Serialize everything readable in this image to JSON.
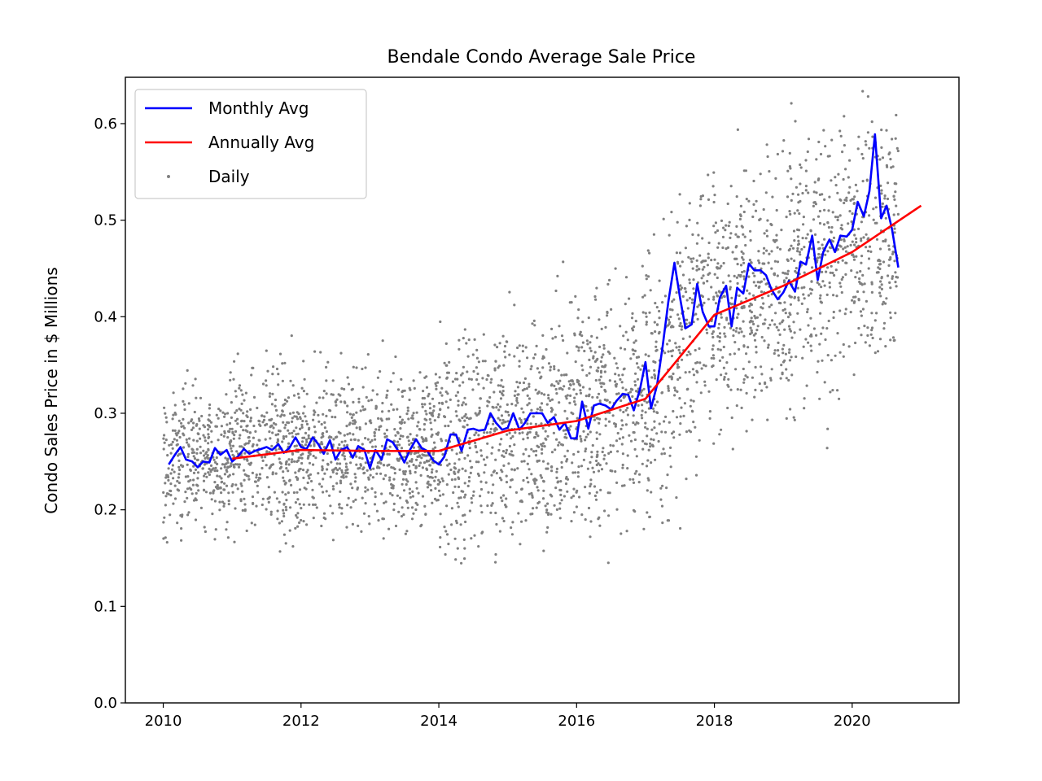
{
  "chart_data": {
    "type": "line",
    "title": "Bendale Condo Average Sale Price",
    "xlabel": "",
    "ylabel": "Condo Sales Price in $ Millions",
    "xlim": [
      2009.45,
      2021.55
    ],
    "ylim": [
      0.0,
      0.648
    ],
    "x_ticks": [
      2010,
      2012,
      2014,
      2016,
      2018,
      2020
    ],
    "x_tick_labels": [
      "2010",
      "2012",
      "2014",
      "2016",
      "2018",
      "2020"
    ],
    "y_ticks": [
      0.0,
      0.1,
      0.2,
      0.3,
      0.4,
      0.5,
      0.6
    ],
    "y_tick_labels": [
      "0.0",
      "0.1",
      "0.2",
      "0.3",
      "0.4",
      "0.5",
      "0.6"
    ],
    "grid": false,
    "legend_position": "top-left",
    "series": [
      {
        "name": "Monthly Avg",
        "color": "#0000ff",
        "style": "line",
        "points": [
          [
            2010.08,
            0.247
          ],
          [
            2010.17,
            0.257
          ],
          [
            2010.25,
            0.265
          ],
          [
            2010.33,
            0.252
          ],
          [
            2010.42,
            0.25
          ],
          [
            2010.5,
            0.244
          ],
          [
            2010.58,
            0.25
          ],
          [
            2010.67,
            0.249
          ],
          [
            2010.75,
            0.264
          ],
          [
            2010.83,
            0.257
          ],
          [
            2010.92,
            0.262
          ],
          [
            2011.0,
            0.25
          ],
          [
            2011.08,
            0.255
          ],
          [
            2011.17,
            0.263
          ],
          [
            2011.25,
            0.258
          ],
          [
            2011.33,
            0.261
          ],
          [
            2011.42,
            0.263
          ],
          [
            2011.5,
            0.265
          ],
          [
            2011.58,
            0.262
          ],
          [
            2011.67,
            0.268
          ],
          [
            2011.75,
            0.259
          ],
          [
            2011.83,
            0.264
          ],
          [
            2011.92,
            0.275
          ],
          [
            2012.0,
            0.265
          ],
          [
            2012.08,
            0.263
          ],
          [
            2012.17,
            0.275
          ],
          [
            2012.25,
            0.268
          ],
          [
            2012.33,
            0.258
          ],
          [
            2012.42,
            0.272
          ],
          [
            2012.5,
            0.252
          ],
          [
            2012.58,
            0.262
          ],
          [
            2012.67,
            0.265
          ],
          [
            2012.75,
            0.254
          ],
          [
            2012.83,
            0.266
          ],
          [
            2012.92,
            0.262
          ],
          [
            2013.0,
            0.243
          ],
          [
            2013.08,
            0.262
          ],
          [
            2013.17,
            0.252
          ],
          [
            2013.25,
            0.273
          ],
          [
            2013.33,
            0.27
          ],
          [
            2013.42,
            0.26
          ],
          [
            2013.5,
            0.249
          ],
          [
            2013.58,
            0.262
          ],
          [
            2013.67,
            0.273
          ],
          [
            2013.75,
            0.264
          ],
          [
            2013.83,
            0.261
          ],
          [
            2013.92,
            0.251
          ],
          [
            2014.0,
            0.247
          ],
          [
            2014.08,
            0.255
          ],
          [
            2014.17,
            0.278
          ],
          [
            2014.25,
            0.278
          ],
          [
            2014.33,
            0.261
          ],
          [
            2014.42,
            0.283
          ],
          [
            2014.5,
            0.284
          ],
          [
            2014.58,
            0.282
          ],
          [
            2014.67,
            0.283
          ],
          [
            2014.75,
            0.3
          ],
          [
            2014.83,
            0.29
          ],
          [
            2014.92,
            0.283
          ],
          [
            2015.0,
            0.285
          ],
          [
            2015.08,
            0.3
          ],
          [
            2015.17,
            0.283
          ],
          [
            2015.25,
            0.29
          ],
          [
            2015.33,
            0.3
          ],
          [
            2015.42,
            0.3
          ],
          [
            2015.5,
            0.3
          ],
          [
            2015.58,
            0.29
          ],
          [
            2015.67,
            0.296
          ],
          [
            2015.75,
            0.283
          ],
          [
            2015.83,
            0.29
          ],
          [
            2015.92,
            0.274
          ],
          [
            2016.0,
            0.274
          ],
          [
            2016.08,
            0.312
          ],
          [
            2016.17,
            0.284
          ],
          [
            2016.25,
            0.308
          ],
          [
            2016.33,
            0.31
          ],
          [
            2016.42,
            0.308
          ],
          [
            2016.5,
            0.304
          ],
          [
            2016.58,
            0.313
          ],
          [
            2016.67,
            0.32
          ],
          [
            2016.75,
            0.319
          ],
          [
            2016.83,
            0.303
          ],
          [
            2016.92,
            0.325
          ],
          [
            2017.0,
            0.353
          ],
          [
            2017.08,
            0.305
          ],
          [
            2017.17,
            0.33
          ],
          [
            2017.25,
            0.37
          ],
          [
            2017.33,
            0.415
          ],
          [
            2017.42,
            0.456
          ],
          [
            2017.5,
            0.42
          ],
          [
            2017.58,
            0.388
          ],
          [
            2017.67,
            0.392
          ],
          [
            2017.75,
            0.434
          ],
          [
            2017.83,
            0.405
          ],
          [
            2017.92,
            0.39
          ],
          [
            2018.0,
            0.39
          ],
          [
            2018.08,
            0.42
          ],
          [
            2018.17,
            0.432
          ],
          [
            2018.25,
            0.39
          ],
          [
            2018.33,
            0.43
          ],
          [
            2018.42,
            0.424
          ],
          [
            2018.5,
            0.455
          ],
          [
            2018.58,
            0.448
          ],
          [
            2018.67,
            0.448
          ],
          [
            2018.75,
            0.443
          ],
          [
            2018.83,
            0.428
          ],
          [
            2018.92,
            0.418
          ],
          [
            2019.0,
            0.425
          ],
          [
            2019.08,
            0.437
          ],
          [
            2019.17,
            0.426
          ],
          [
            2019.25,
            0.457
          ],
          [
            2019.33,
            0.454
          ],
          [
            2019.42,
            0.484
          ],
          [
            2019.5,
            0.438
          ],
          [
            2019.58,
            0.467
          ],
          [
            2019.67,
            0.48
          ],
          [
            2019.75,
            0.467
          ],
          [
            2019.83,
            0.484
          ],
          [
            2019.92,
            0.483
          ],
          [
            2020.0,
            0.49
          ],
          [
            2020.08,
            0.519
          ],
          [
            2020.17,
            0.504
          ],
          [
            2020.25,
            0.53
          ],
          [
            2020.33,
            0.589
          ],
          [
            2020.42,
            0.502
          ],
          [
            2020.5,
            0.515
          ],
          [
            2020.58,
            0.49
          ],
          [
            2020.67,
            0.451
          ]
        ]
      },
      {
        "name": "Annually Avg",
        "color": "#ff0000",
        "style": "line",
        "points": [
          [
            2011.0,
            0.253
          ],
          [
            2012.0,
            0.262
          ],
          [
            2013.0,
            0.261
          ],
          [
            2014.0,
            0.261
          ],
          [
            2015.0,
            0.282
          ],
          [
            2016.0,
            0.292
          ],
          [
            2017.0,
            0.315
          ],
          [
            2018.0,
            0.402
          ],
          [
            2019.0,
            0.432
          ],
          [
            2020.0,
            0.467
          ],
          [
            2021.0,
            0.515
          ]
        ]
      },
      {
        "name": "Daily",
        "color": "#808080",
        "style": "scatter",
        "segments": [
          {
            "x": [
              2010.0,
              2011.0
            ],
            "mean": [
              0.245,
              0.262
            ],
            "spread": 0.035
          },
          {
            "x": [
              2011.0,
              2014.0
            ],
            "mean": [
              0.262,
              0.265
            ],
            "spread": 0.04
          },
          {
            "x": [
              2014.0,
              2016.0
            ],
            "mean": [
              0.265,
              0.295
            ],
            "spread": 0.055
          },
          {
            "x": [
              2016.0,
              2017.0
            ],
            "mean": [
              0.295,
              0.32
            ],
            "spread": 0.06
          },
          {
            "x": [
              2017.0,
              2018.0
            ],
            "mean": [
              0.32,
              0.41
            ],
            "spread": 0.07
          },
          {
            "x": [
              2018.0,
              2020.67
            ],
            "mean": [
              0.41,
              0.495
            ],
            "spread": 0.065
          }
        ]
      }
    ]
  }
}
